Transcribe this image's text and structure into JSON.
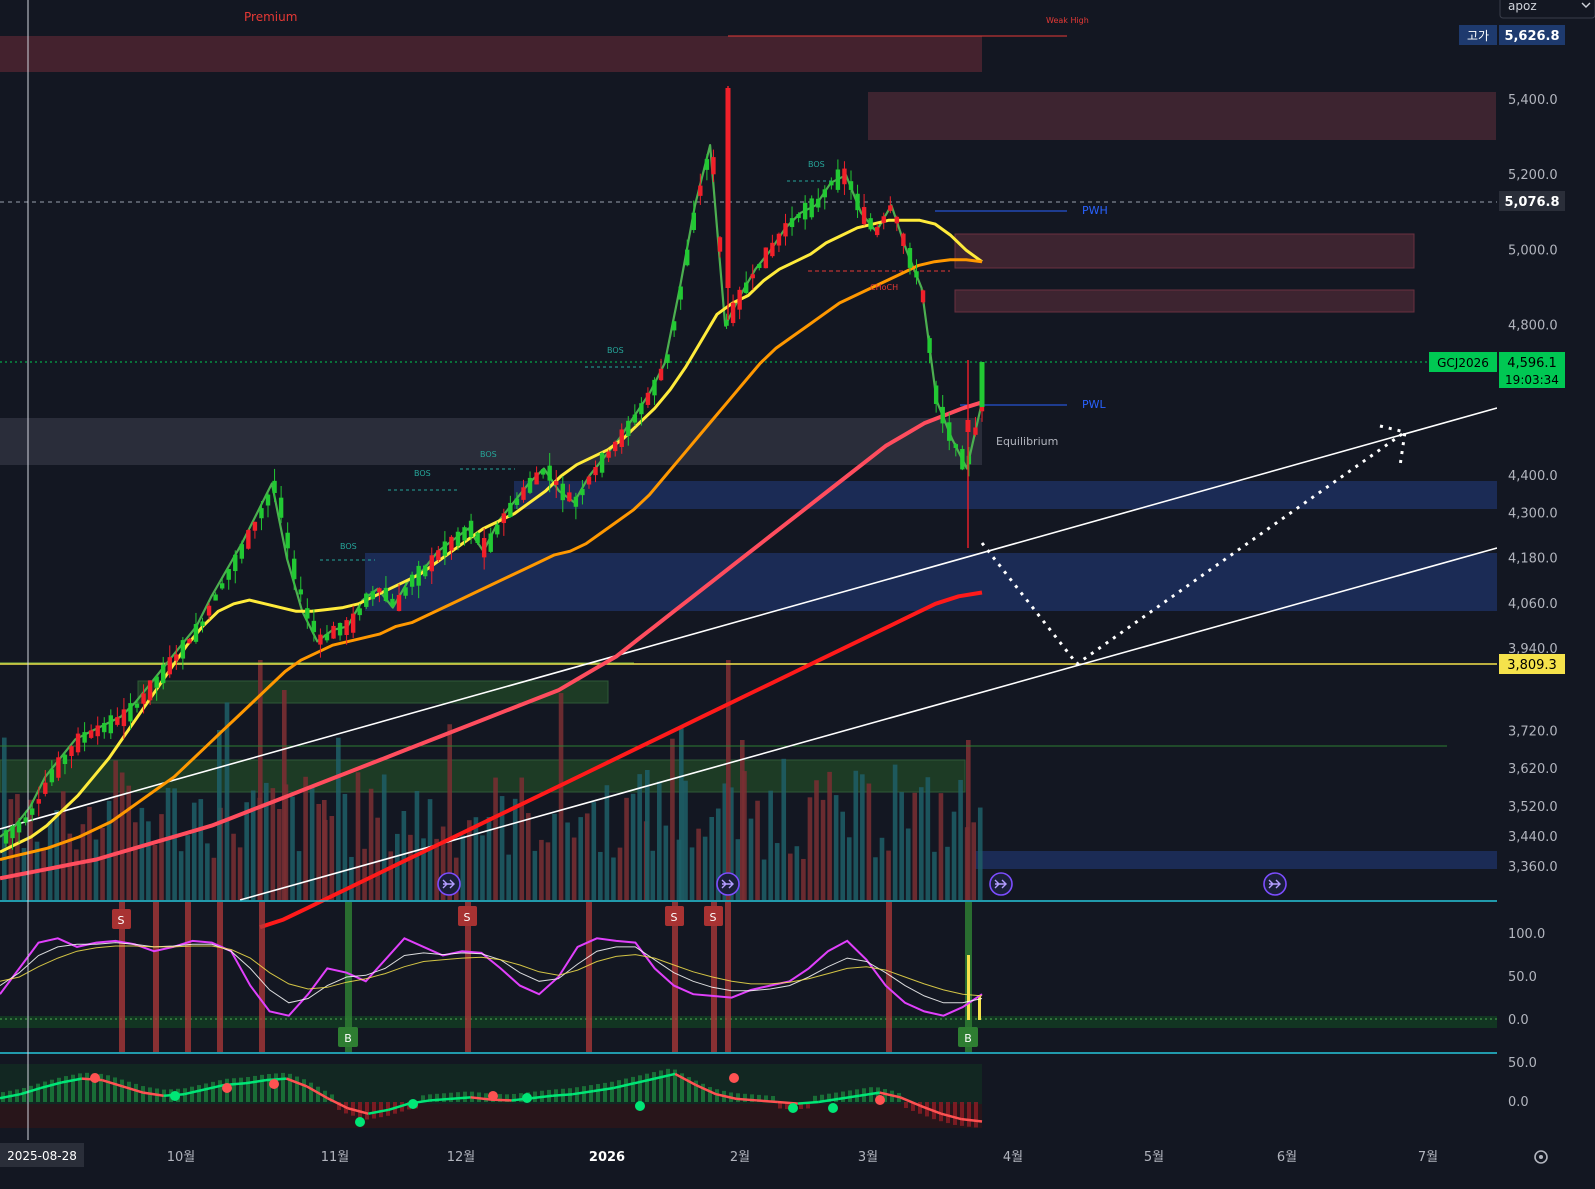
{
  "header": {
    "user_label": "apoz",
    "user_menu_icon": "chevron-down-icon"
  },
  "symbol": {
    "ticker": "GCJ2026",
    "last_price": "4,596.1",
    "countdown": "19:03:34"
  },
  "price_labels": {
    "high_tag": "고가",
    "high": "5,626.8",
    "dashed_level": "5,076.8",
    "yellow_level": "3,809.3"
  },
  "annotations": {
    "premium": "Premium",
    "weak_high": "Weak High",
    "pwh": "PWH",
    "pwl": "PWL",
    "equilibrium": "Equilibrium",
    "choch": "CHoCH",
    "bos": [
      "BOS",
      "BOS",
      "BOS",
      "BOS",
      "BOS"
    ]
  },
  "oscillator_signals": {
    "sell": [
      "S",
      "S",
      "S",
      "S"
    ],
    "buy": [
      "B",
      "B"
    ]
  },
  "date_cursor": "2025-08-28",
  "colors": {
    "background": "#131722",
    "bull_candle": "#22c933",
    "bear_candle": "#f0202a",
    "ema_fast": "#4caf50",
    "ema_yellow": "#ffeb3b",
    "ema_orange": "#ff9800",
    "ema_red": "#ff3040",
    "supply_zone": "#4a2430",
    "demand_zone": "#1b2b55",
    "accent_green": "#00e676"
  },
  "chart_data": [
    {
      "type": "line",
      "title": "",
      "ylabel": "",
      "ylim": [
        3300,
        5700
      ],
      "y_ticks": [
        "5,400.0",
        "5,200.0",
        "5,000.0",
        "4,800.0",
        "4,400.0",
        "4,300.0",
        "4,180.0",
        "4,060.0",
        "3,940.0",
        "3,720.0",
        "3,620.0",
        "3,520.0",
        "3,440.0",
        "3,360.0"
      ],
      "x_ticks": [
        "10월",
        "11월",
        "12월",
        "2026",
        "2월",
        "3월",
        "4월",
        "5월",
        "6월",
        "7월"
      ],
      "series": [
        {
          "values": [
            3440,
            3470,
            3520,
            3600,
            3650,
            3700,
            3720,
            3740,
            3760,
            3800,
            3850,
            3900,
            3950,
            4000,
            4080,
            4150,
            4220,
            4300,
            4380,
            4180,
            4040,
            3960,
            3990,
            4000,
            4070,
            4100,
            4050,
            4120,
            4150,
            4200,
            4230,
            4260,
            4200,
            4280,
            4330,
            4380,
            4420,
            4360,
            4330,
            4400,
            4450,
            4500,
            4560,
            4620,
            4700,
            4900,
            5120,
            5280,
            4800,
            4880,
            4950,
            5000,
            5060,
            5100,
            5120,
            5180,
            5200,
            5100,
            5050,
            5120,
            5000,
            4900,
            4600,
            4500,
            4420,
            4596
          ]
        },
        {
          "values": [
            3400,
            3420,
            3440,
            3470,
            3510,
            3550,
            3600,
            3650,
            3710,
            3770,
            3830,
            3890,
            3950,
            4000,
            4040,
            4060,
            4070,
            4060,
            4050,
            4040,
            4040,
            4045,
            4050,
            4060,
            4080,
            4100,
            4120,
            4140,
            4170,
            4200,
            4230,
            4260,
            4280,
            4300,
            4330,
            4360,
            4400,
            4430,
            4450,
            4470,
            4500,
            4540,
            4580,
            4630,
            4690,
            4760,
            4830,
            4860,
            4880,
            4920,
            4950,
            4970,
            4990,
            5020,
            5040,
            5060,
            5070,
            5080,
            5080,
            5080,
            5070,
            5040,
            5000,
            4970
          ]
        },
        {
          "values": [
            3380,
            3390,
            3400,
            3410,
            3425,
            3440,
            3460,
            3480,
            3510,
            3540,
            3570,
            3600,
            3640,
            3680,
            3720,
            3760,
            3800,
            3840,
            3880,
            3910,
            3930,
            3950,
            3960,
            3970,
            3980,
            4000,
            4010,
            4030,
            4050,
            4070,
            4090,
            4110,
            4130,
            4150,
            4170,
            4190,
            4200,
            4220,
            4250,
            4280,
            4310,
            4350,
            4400,
            4450,
            4500,
            4550,
            4600,
            4650,
            4700,
            4740,
            4770,
            4800,
            4830,
            4860,
            4880,
            4900,
            4920,
            4940,
            4960,
            4970,
            4975,
            4975,
            4970
          ]
        },
        {
          "values": [
            3330,
            3340,
            3350,
            3360,
            3370,
            3380,
            3395,
            3410,
            3425,
            3440,
            3455,
            3470,
            3490,
            3510,
            3530,
            3550,
            3570,
            3590,
            3610,
            3630,
            3650,
            3670,
            3690,
            3710,
            3730,
            3750,
            3770,
            3790,
            3810,
            3830,
            3860,
            3890,
            3920,
            3960,
            4000,
            4040,
            4080,
            4120,
            4160,
            4200,
            4240,
            4280,
            4320,
            4360,
            4400,
            4440,
            4480,
            4510,
            4540,
            4560,
            4580,
            4596
          ]
        },
        {
          "values": [
            3200,
            3220,
            3250,
            3280,
            3310,
            3340,
            3370,
            3400,
            3430,
            3460,
            3490,
            3520,
            3550,
            3580,
            3610,
            3640,
            3670,
            3700,
            3730,
            3760,
            3790,
            3820,
            3850,
            3880,
            3910,
            3940,
            3970,
            4000,
            4030,
            4060,
            4080,
            4090
          ]
        }
      ]
    },
    {
      "type": "line",
      "title": "",
      "ylim": [
        -20,
        130
      ],
      "y_ticks": [
        "100.0",
        "50.0",
        "0.0"
      ],
      "series": [
        {
          "values": [
            30,
            60,
            90,
            95,
            85,
            90,
            92,
            88,
            80,
            85,
            92,
            90,
            80,
            40,
            10,
            5,
            30,
            60,
            55,
            45,
            70,
            95,
            85,
            75,
            80,
            78,
            60,
            40,
            30,
            50,
            85,
            95,
            92,
            90,
            60,
            40,
            30,
            28,
            26,
            35,
            40,
            45,
            60,
            80,
            92,
            70,
            40,
            20,
            10,
            5,
            15,
            30
          ]
        },
        {
          "values": [
            40,
            55,
            75,
            85,
            88,
            88,
            90,
            88,
            85,
            86,
            88,
            88,
            80,
            60,
            35,
            20,
            25,
            40,
            50,
            52,
            60,
            75,
            78,
            76,
            78,
            77,
            70,
            55,
            45,
            48,
            65,
            80,
            85,
            85,
            70,
            55,
            45,
            38,
            34,
            34,
            36,
            40,
            50,
            62,
            72,
            68,
            55,
            40,
            28,
            20,
            20,
            25
          ]
        },
        {
          "values": [
            45,
            50,
            62,
            72,
            80,
            84,
            86,
            86,
            85,
            85,
            86,
            86,
            82,
            72,
            55,
            42,
            36,
            38,
            44,
            48,
            54,
            62,
            68,
            70,
            72,
            73,
            70,
            64,
            56,
            52,
            58,
            68,
            74,
            76,
            72,
            64,
            56,
            50,
            45,
            42,
            42,
            44,
            48,
            54,
            60,
            62,
            58,
            50,
            42,
            35,
            30,
            28
          ]
        }
      ]
    },
    {
      "type": "line",
      "title": "",
      "ylim": [
        -30,
        60
      ],
      "y_ticks": [
        "50.0",
        "0.0"
      ],
      "series": [
        {
          "values": [
            5,
            10,
            18,
            25,
            30,
            28,
            20,
            12,
            8,
            10,
            16,
            22,
            24,
            28,
            30,
            20,
            5,
            -8,
            -15,
            -10,
            -2,
            2,
            4,
            6,
            3,
            2,
            5,
            8,
            10,
            14,
            18,
            24,
            30,
            36,
            22,
            10,
            4,
            2,
            0,
            -2,
            0,
            4,
            8,
            12,
            6,
            -5,
            -15,
            -22,
            -25
          ]
        }
      ]
    }
  ]
}
